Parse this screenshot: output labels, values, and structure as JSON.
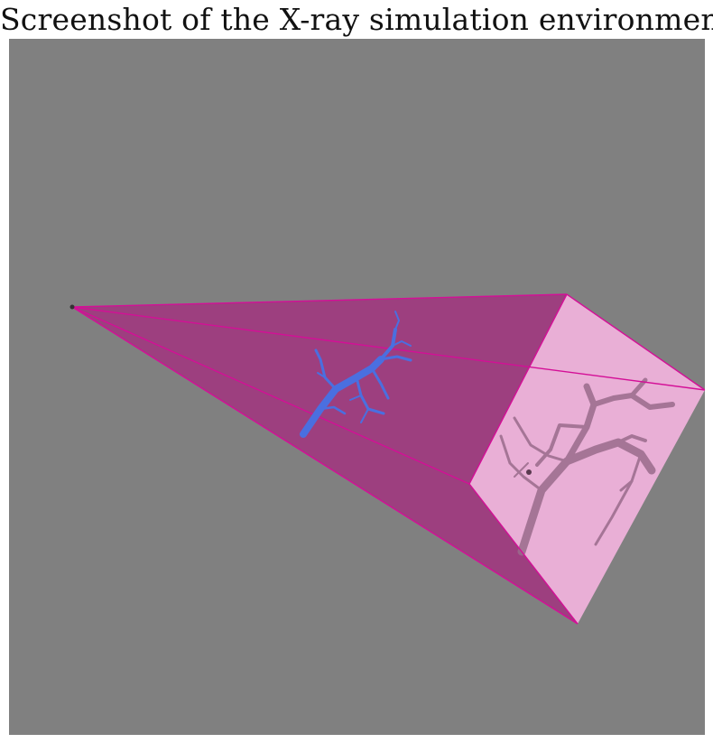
{
  "figure": {
    "caption": "Screenshot of the X-ray simulation environment"
  },
  "scene": {
    "background_color": "#808080",
    "beam_color": "#9d3f7f",
    "beam_edge_color": "#d40f97",
    "detector_color": "#e9afd6",
    "vessel_color": "#4a6fe0",
    "projection_color": "#9a6b8c",
    "source_icon": "xray-source-point-icon",
    "object_icon": "vessel-tree-icon",
    "detector_icon": "detector-plane-icon"
  }
}
